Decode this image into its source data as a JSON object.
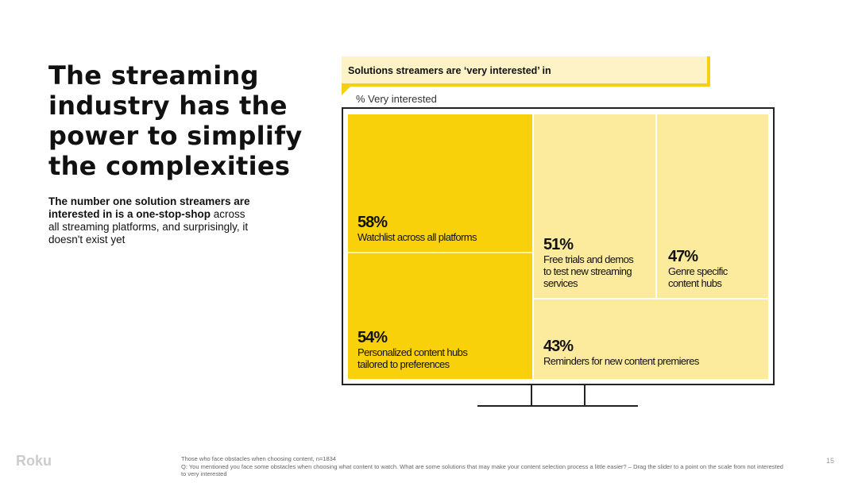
{
  "title": "The streaming industry has the power to simplify the complexities",
  "subtitle": {
    "bold": "The number one solution streamers are interested in is a one-stop-shop",
    "rest": " across all streaming platforms, and surprisingly, it doesn't exist yet"
  },
  "banner": "Solutions streamers are ‘very interested’ in",
  "unit": "% Very interested",
  "tiles": [
    {
      "pct": "58%",
      "label": "Watchlist across all platforms"
    },
    {
      "pct": "54%",
      "label": "Personalized content hubs tailored to preferences"
    },
    {
      "pct": "51%",
      "label": "Free trials and demos to test new streaming services"
    },
    {
      "pct": "47%",
      "label": "Genre specific content hubs"
    },
    {
      "pct": "43%",
      "label": "Reminders for new content premieres"
    }
  ],
  "footer": {
    "base": "Those who face obstacles when choosing content, n=1834",
    "question": "Q: You mentioned you face some obstacles when choosing what content to watch. What are some solutions that may make your content selection process a little easier? – Drag the slider to a point on the scale from not interested to very interested"
  },
  "page": "15",
  "watermark": "Roku"
}
